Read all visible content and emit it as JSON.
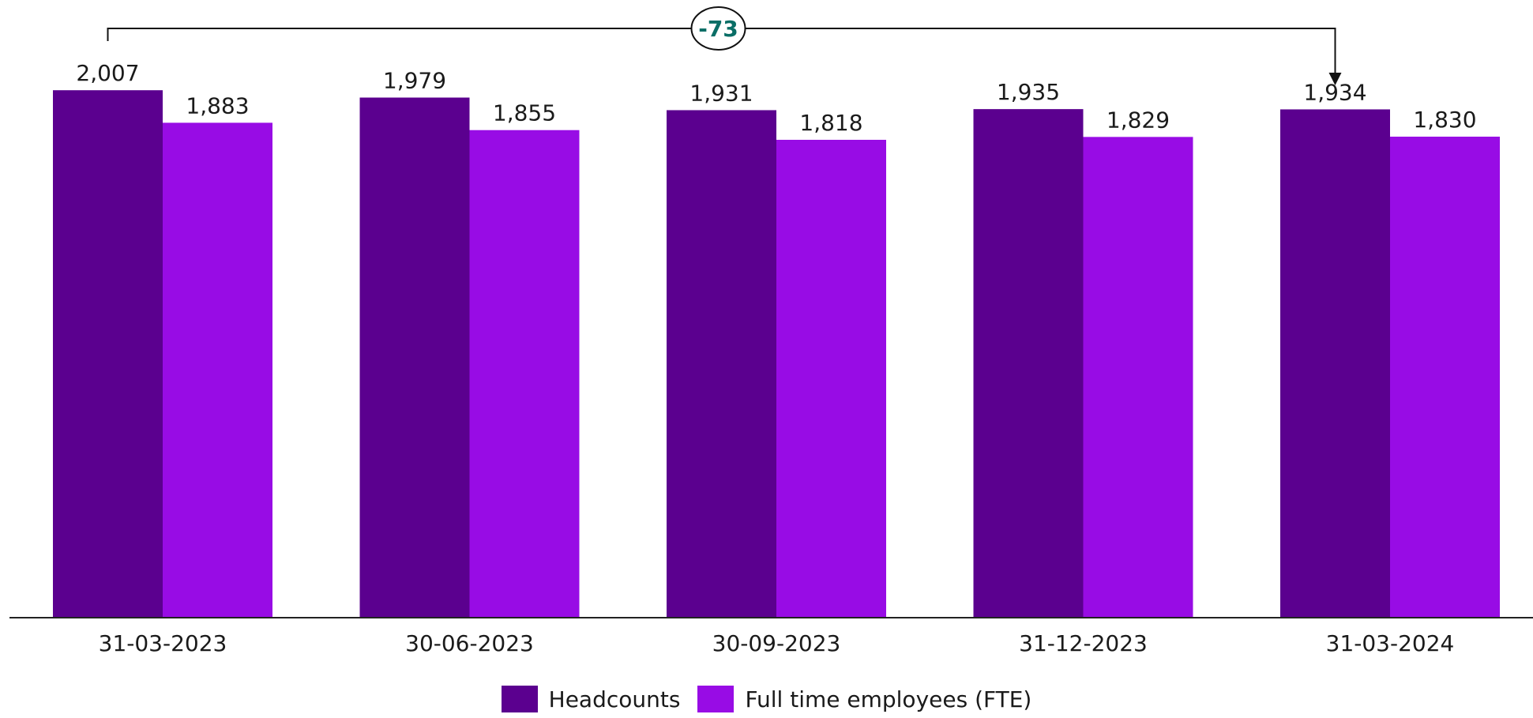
{
  "chart_data": {
    "type": "bar",
    "categories": [
      "31-03-2023",
      "30-06-2023",
      "30-09-2023",
      "31-12-2023",
      "31-03-2024"
    ],
    "series": [
      {
        "name": "Headcounts",
        "values": [
          2007,
          1979,
          1931,
          1935,
          1934
        ],
        "labels": [
          "2,007",
          "1,979",
          "1,931",
          "1,935",
          "1,934"
        ],
        "color": "#5B008F"
      },
      {
        "name": "Full time employees (FTE)",
        "values": [
          1883,
          1855,
          1818,
          1829,
          1830
        ],
        "labels": [
          "1,883",
          "1,855",
          "1,818",
          "1,829",
          "1,830"
        ],
        "color": "#980CE5"
      }
    ],
    "annotation": {
      "text": "-73",
      "color": "#0A6E66",
      "from_category": "31-03-2023",
      "to_category": "31-03-2024",
      "series": "Headcounts"
    },
    "ylim": [
      0,
      2100
    ],
    "grid": false,
    "legend": "bottom-center"
  }
}
